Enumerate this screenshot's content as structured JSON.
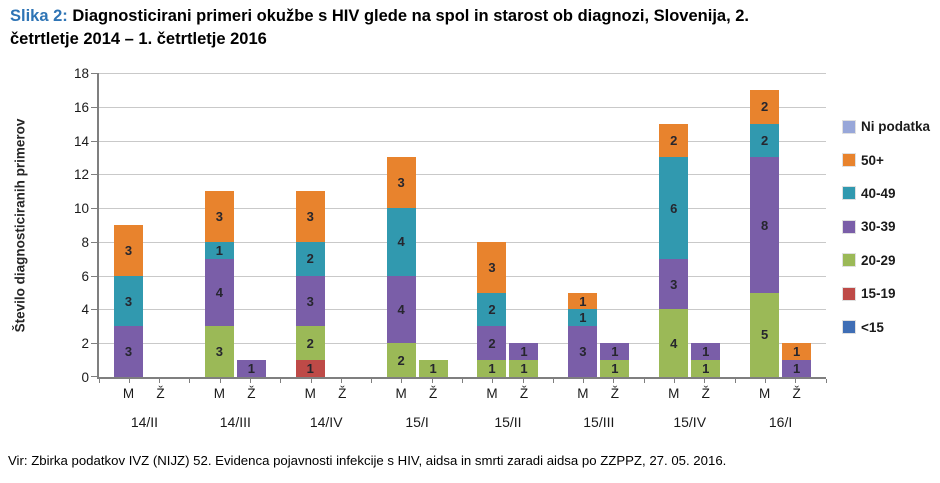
{
  "page": {
    "title": {
      "prefix": "Slika 2:",
      "line1_rest": " Diagnosticirani primeri okužbe s HIV glede na spol in starost ob diagnozi, Slovenija,  2.",
      "line2": "četrtletje 2014 – 1. četrtletje 2016"
    },
    "source": "Vir: Zbirka podatkov IVZ (NIJZ) 52. Evidenca pojavnosti infekcije s HIV, aidsa in smrti zaradi aidsa po ZZPPZ, 27. 05. 2016."
  },
  "chart_data": {
    "type": "bar",
    "variant": "stacked-grouped",
    "title": "Diagnosticirani primeri okužbe s HIV glede na spol in starost ob diagnozi, Slovenija, 2. četrtletje 2014 – 1. četrtletje 2016",
    "ylabel": "Število diagnosticiranih primerov",
    "xlabel": "",
    "ylim": [
      0,
      18
    ],
    "ytick_step": 2,
    "grid": true,
    "legend_position": "right",
    "categories": [
      "14/II",
      "14/III",
      "14/IV",
      "15/I",
      "15/II",
      "15/III",
      "15/IV",
      "16/I"
    ],
    "subcategory_labels": [
      "M",
      "Ž"
    ],
    "subcategory_keys": [
      "M",
      "Z"
    ],
    "stack_order_bottom_to_top": [
      "<15",
      "15-19",
      "20-29",
      "30-39",
      "40-49",
      "50+",
      "Ni podatka"
    ],
    "legend": [
      {
        "label": "Ni podatka",
        "color": "#98A7D9"
      },
      {
        "label": "50+",
        "color": "#E8832D"
      },
      {
        "label": "40-49",
        "color": "#3199AF"
      },
      {
        "label": "30-39",
        "color": "#7A5EA8"
      },
      {
        "label": "20-29",
        "color": "#9BB957"
      },
      {
        "label": "15-19",
        "color": "#BE4A47"
      },
      {
        "label": "<15",
        "color": "#3F6EB5"
      }
    ],
    "values": [
      {
        "category": "14/II",
        "M": {
          "30-39": 3,
          "40-49": 3,
          "50+": 3
        },
        "Z": {}
      },
      {
        "category": "14/III",
        "M": {
          "20-29": 3,
          "30-39": 4,
          "40-49": 1,
          "50+": 3
        },
        "Z": {
          "30-39": 1
        }
      },
      {
        "category": "14/IV",
        "M": {
          "15-19": 1,
          "20-29": 2,
          "30-39": 3,
          "40-49": 2,
          "50+": 3
        },
        "Z": {}
      },
      {
        "category": "15/I",
        "M": {
          "20-29": 2,
          "30-39": 4,
          "40-49": 4,
          "50+": 3
        },
        "Z": {
          "20-29": 1
        }
      },
      {
        "category": "15/II",
        "M": {
          "20-29": 1,
          "30-39": 2,
          "40-49": 2,
          "50+": 3
        },
        "Z": {
          "20-29": 1,
          "30-39": 1
        }
      },
      {
        "category": "15/III",
        "M": {
          "30-39": 3,
          "40-49": 1,
          "50+": 1
        },
        "Z": {
          "20-29": 1,
          "30-39": 1
        }
      },
      {
        "category": "15/IV",
        "M": {
          "20-29": 4,
          "30-39": 3,
          "40-49": 6,
          "50+": 2
        },
        "Z": {
          "20-29": 1,
          "30-39": 1
        }
      },
      {
        "category": "16/I",
        "M": {
          "20-29": 5,
          "30-39": 8,
          "40-49": 2,
          "50+": 2
        },
        "Z": {
          "30-39": 1,
          "50+": 1
        }
      }
    ],
    "totals": {
      "M": [
        9,
        11,
        11,
        13,
        8,
        5,
        15,
        17
      ],
      "Z": [
        0,
        1,
        0,
        1,
        2,
        2,
        2,
        2
      ]
    }
  },
  "style": {
    "title_accent": "#2E74B5",
    "grid_color": "#C9C9C9",
    "axis_color": "#7F7F7F"
  }
}
